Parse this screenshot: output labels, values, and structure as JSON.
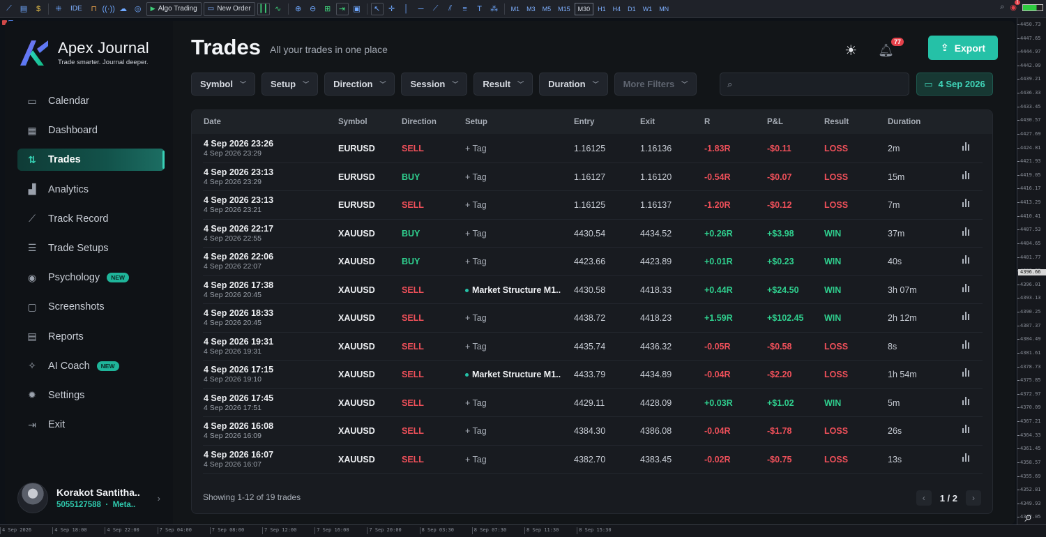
{
  "toolbar": {
    "ide_label": "IDE",
    "algo_label": "Algo Trading",
    "order_label": "New Order",
    "timeframes": [
      "M1",
      "M3",
      "M5",
      "M15",
      "M30",
      "H1",
      "H4",
      "D1",
      "W1",
      "MN"
    ],
    "active_timeframe": "M30",
    "notif_count": "1"
  },
  "price_axis": [
    "4450.73",
    "4447.65",
    "4444.97",
    "4442.09",
    "4439.21",
    "4436.33",
    "4433.45",
    "4430.57",
    "4427.69",
    "4424.81",
    "4421.93",
    "4419.05",
    "4416.17",
    "4413.29",
    "4410.41",
    "4407.53",
    "4404.65",
    "4401.77",
    "4398.89",
    "4396.01",
    "4393.13",
    "4390.25",
    "4387.37",
    "4384.49",
    "4381.61",
    "4378.73",
    "4375.85",
    "4372.97",
    "4370.09",
    "4367.21",
    "4364.33",
    "4361.45",
    "4358.57",
    "4355.69",
    "4352.81",
    "4349.93",
    "4347.05"
  ],
  "price_tag": "4396.66",
  "time_axis": [
    "4 Sep 2026",
    "4 Sep 18:00",
    "4 Sep 22:00",
    "7 Sep 04:00",
    "7 Sep 08:00",
    "7 Sep 12:00",
    "7 Sep 16:00",
    "7 Sep 20:00",
    "8 Sep 03:30",
    "8 Sep 07:30",
    "8 Sep 11:30",
    "8 Sep 15:30"
  ],
  "brand": {
    "name": "Apex Journal",
    "tagline": "Trade smarter. Journal deeper."
  },
  "nav": [
    {
      "label": "Calendar",
      "icon": "calendar-icon",
      "glyph": "▭"
    },
    {
      "label": "Dashboard",
      "icon": "dashboard-icon",
      "glyph": "▦"
    },
    {
      "label": "Trades",
      "icon": "trades-icon",
      "glyph": "⇅",
      "active": true
    },
    {
      "label": "Analytics",
      "icon": "analytics-icon",
      "glyph": "▟"
    },
    {
      "label": "Track Record",
      "icon": "track-record-icon",
      "glyph": "⟋"
    },
    {
      "label": "Trade Setups",
      "icon": "sliders-icon",
      "glyph": "☰"
    },
    {
      "label": "Psychology",
      "icon": "psychology-icon",
      "glyph": "◉",
      "badge": "NEW"
    },
    {
      "label": "Screenshots",
      "icon": "screenshot-icon",
      "glyph": "▢"
    },
    {
      "label": "Reports",
      "icon": "reports-icon",
      "glyph": "▤"
    },
    {
      "label": "AI Coach",
      "icon": "ai-coach-icon",
      "glyph": "✧",
      "badge": "NEW"
    },
    {
      "label": "Settings",
      "icon": "settings-icon",
      "glyph": "✹"
    },
    {
      "label": "Exit",
      "icon": "exit-icon",
      "glyph": "⇥"
    }
  ],
  "user": {
    "name": "Korakot Santitha..",
    "account": "5055127588",
    "platform": "Meta..",
    "separator": "·"
  },
  "header": {
    "title": "Trades",
    "subtitle": "All your trades in one place",
    "notification_count": "77",
    "export_label": "Export"
  },
  "filters": [
    {
      "label": "Symbol"
    },
    {
      "label": "Setup"
    },
    {
      "label": "Direction"
    },
    {
      "label": "Session"
    },
    {
      "label": "Result"
    },
    {
      "label": "Duration"
    },
    {
      "label": "More Filters",
      "disabled": true
    }
  ],
  "search": {
    "placeholder": "",
    "value": ""
  },
  "date_filter": "4 Sep 2026",
  "table": {
    "columns": [
      "Date",
      "Symbol",
      "Direction",
      "Setup",
      "Entry",
      "Exit",
      "R",
      "P&L",
      "Result",
      "Duration"
    ],
    "rows": [
      {
        "open": "4 Sep 2026 23:26",
        "close": "4 Sep 2026 23:29",
        "symbol": "EURUSD",
        "direction": "SELL",
        "setup": "+ Tag",
        "entry": "1.16125",
        "exit": "1.16136",
        "r": "-1.83R",
        "pnl": "-$0.11",
        "result": "LOSS",
        "duration": "2m"
      },
      {
        "open": "4 Sep 2026 23:13",
        "close": "4 Sep 2026 23:29",
        "symbol": "EURUSD",
        "direction": "BUY",
        "setup": "+ Tag",
        "entry": "1.16127",
        "exit": "1.16120",
        "r": "-0.54R",
        "pnl": "-$0.07",
        "result": "LOSS",
        "duration": "15m"
      },
      {
        "open": "4 Sep 2026 23:13",
        "close": "4 Sep 2026 23:21",
        "symbol": "EURUSD",
        "direction": "SELL",
        "setup": "+ Tag",
        "entry": "1.16125",
        "exit": "1.16137",
        "r": "-1.20R",
        "pnl": "-$0.12",
        "result": "LOSS",
        "duration": "7m"
      },
      {
        "open": "4 Sep 2026 22:17",
        "close": "4 Sep 2026 22:55",
        "symbol": "XAUUSD",
        "direction": "BUY",
        "setup": "+ Tag",
        "entry": "4430.54",
        "exit": "4434.52",
        "r": "+0.26R",
        "pnl": "+$3.98",
        "result": "WIN",
        "duration": "37m"
      },
      {
        "open": "4 Sep 2026 22:06",
        "close": "4 Sep 2026 22:07",
        "symbol": "XAUUSD",
        "direction": "BUY",
        "setup": "+ Tag",
        "entry": "4423.66",
        "exit": "4423.89",
        "r": "+0.01R",
        "pnl": "+$0.23",
        "result": "WIN",
        "duration": "40s"
      },
      {
        "open": "4 Sep 2026 17:38",
        "close": "4 Sep 2026 20:45",
        "symbol": "XAUUSD",
        "direction": "SELL",
        "setup": "Market Structure M1..",
        "tagged": true,
        "entry": "4430.58",
        "exit": "4418.33",
        "r": "+0.44R",
        "pnl": "+$24.50",
        "result": "WIN",
        "duration": "3h 07m"
      },
      {
        "open": "4 Sep 2026 18:33",
        "close": "4 Sep 2026 20:45",
        "symbol": "XAUUSD",
        "direction": "SELL",
        "setup": "+ Tag",
        "entry": "4438.72",
        "exit": "4418.23",
        "r": "+1.59R",
        "pnl": "+$102.45",
        "result": "WIN",
        "duration": "2h 12m"
      },
      {
        "open": "4 Sep 2026 19:31",
        "close": "4 Sep 2026 19:31",
        "symbol": "XAUUSD",
        "direction": "SELL",
        "setup": "+ Tag",
        "entry": "4435.74",
        "exit": "4436.32",
        "r": "-0.05R",
        "pnl": "-$0.58",
        "result": "LOSS",
        "duration": "8s"
      },
      {
        "open": "4 Sep 2026 17:15",
        "close": "4 Sep 2026 19:10",
        "symbol": "XAUUSD",
        "direction": "SELL",
        "setup": "Market Structure M1..",
        "tagged": true,
        "entry": "4433.79",
        "exit": "4434.89",
        "r": "-0.04R",
        "pnl": "-$2.20",
        "result": "LOSS",
        "duration": "1h 54m"
      },
      {
        "open": "4 Sep 2026 17:45",
        "close": "4 Sep 2026 17:51",
        "symbol": "XAUUSD",
        "direction": "SELL",
        "setup": "+ Tag",
        "entry": "4429.11",
        "exit": "4428.09",
        "r": "+0.03R",
        "pnl": "+$1.02",
        "result": "WIN",
        "duration": "5m"
      },
      {
        "open": "4 Sep 2026 16:08",
        "close": "4 Sep 2026 16:09",
        "symbol": "XAUUSD",
        "direction": "SELL",
        "setup": "+ Tag",
        "entry": "4384.30",
        "exit": "4386.08",
        "r": "-0.04R",
        "pnl": "-$1.78",
        "result": "LOSS",
        "duration": "26s"
      },
      {
        "open": "4 Sep 2026 16:07",
        "close": "4 Sep 2026 16:07",
        "symbol": "XAUUSD",
        "direction": "SELL",
        "setup": "+ Tag",
        "entry": "4382.70",
        "exit": "4383.45",
        "r": "-0.02R",
        "pnl": "-$0.75",
        "result": "LOSS",
        "duration": "13s"
      }
    ],
    "footer": "Showing 1-12 of 19 trades",
    "page": "1 / 2"
  },
  "colors": {
    "accent": "#25c1a7",
    "win": "#2fcf8e",
    "loss": "#f0505a",
    "background": "#121518"
  }
}
